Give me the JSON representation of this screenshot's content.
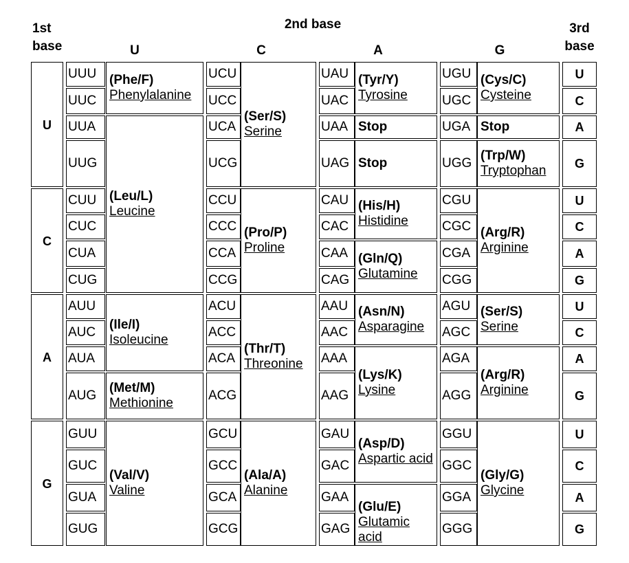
{
  "headers": {
    "first_base": [
      "1st",
      "base"
    ],
    "second_base": "2nd base",
    "third_base": [
      "3rd",
      "base"
    ],
    "columns": [
      "U",
      "C",
      "A",
      "G"
    ]
  },
  "first_bases": [
    "U",
    "C",
    "A",
    "G"
  ],
  "third_bases": [
    "U",
    "C",
    "A",
    "G"
  ],
  "codons": [
    [
      "UUU",
      "UUC",
      "UUA",
      "UUG",
      "CUU",
      "CUC",
      "CUA",
      "CUG",
      "AUU",
      "AUC",
      "AUA",
      "AUG",
      "GUU",
      "GUC",
      "GUA",
      "GUG"
    ],
    [
      "UCU",
      "UCC",
      "UCA",
      "UCG",
      "CCU",
      "CCC",
      "CCA",
      "CCG",
      "ACU",
      "ACC",
      "ACA",
      "ACG",
      "GCU",
      "GCC",
      "GCA",
      "GCG"
    ],
    [
      "UAU",
      "UAC",
      "UAA",
      "UAG",
      "CAU",
      "CAC",
      "CAA",
      "CAG",
      "AAU",
      "AAC",
      "AAA",
      "AAG",
      "GAU",
      "GAC",
      "GAA",
      "GAG"
    ],
    [
      "UGU",
      "UGC",
      "UGA",
      "UGG",
      "CGU",
      "CGC",
      "CGA",
      "CGG",
      "AGU",
      "AGC",
      "AGA",
      "AGG",
      "GGU",
      "GGC",
      "GGA",
      "GGG"
    ]
  ],
  "amino_acids": [
    [
      {
        "abbr": "(Phe/F)",
        "name": "Phenylalanine",
        "start": 0,
        "span": 2
      },
      {
        "abbr": "(Leu/L)",
        "name": "Leucine",
        "start": 2,
        "span": 6
      },
      {
        "abbr": "(Ile/I)",
        "name": "Isoleucine",
        "start": 8,
        "span": 3
      },
      {
        "abbr": "(Met/M)",
        "name": "Methionine",
        "start": 11,
        "span": 1
      },
      {
        "abbr": "(Val/V)",
        "name": "Valine",
        "start": 12,
        "span": 4
      }
    ],
    [
      {
        "abbr": "(Ser/S)",
        "name": "Serine",
        "start": 0,
        "span": 4
      },
      {
        "abbr": "(Pro/P)",
        "name": "Proline",
        "start": 4,
        "span": 4
      },
      {
        "abbr": "(Thr/T)",
        "name": "Threonine",
        "start": 8,
        "span": 4
      },
      {
        "abbr": "(Ala/A)",
        "name": "Alanine",
        "start": 12,
        "span": 4
      }
    ],
    [
      {
        "abbr": "(Tyr/Y)",
        "name": "Tyrosine",
        "start": 0,
        "span": 2
      },
      {
        "abbr": "Stop",
        "name": "",
        "start": 2,
        "span": 1
      },
      {
        "abbr": "Stop",
        "name": "",
        "start": 3,
        "span": 1
      },
      {
        "abbr": "(His/H)",
        "name": "Histidine",
        "start": 4,
        "span": 2
      },
      {
        "abbr": "(Gln/Q)",
        "name": "Glutamine",
        "start": 6,
        "span": 2
      },
      {
        "abbr": "(Asn/N)",
        "name": "Asparagine",
        "start": 8,
        "span": 2
      },
      {
        "abbr": "(Lys/K)",
        "name": "Lysine",
        "start": 10,
        "span": 2
      },
      {
        "abbr": "(Asp/D)",
        "name": "Aspartic acid",
        "start": 12,
        "span": 2
      },
      {
        "abbr": "(Glu/E)",
        "name": "Glutamic acid",
        "start": 14,
        "span": 2
      }
    ],
    [
      {
        "abbr": "(Cys/C)",
        "name": "Cysteine",
        "start": 0,
        "span": 2
      },
      {
        "abbr": "Stop",
        "name": "",
        "start": 2,
        "span": 1
      },
      {
        "abbr": "(Trp/W)",
        "name": "Tryptophan",
        "start": 3,
        "span": 1
      },
      {
        "abbr": "(Arg/R)",
        "name": "Arginine",
        "start": 4,
        "span": 4
      },
      {
        "abbr": "(Ser/S)",
        "name": "Serine",
        "start": 8,
        "span": 2
      },
      {
        "abbr": "(Arg/R)",
        "name": "Arginine",
        "start": 10,
        "span": 2
      },
      {
        "abbr": "(Gly/G)",
        "name": "Glycine",
        "start": 12,
        "span": 4
      }
    ]
  ]
}
